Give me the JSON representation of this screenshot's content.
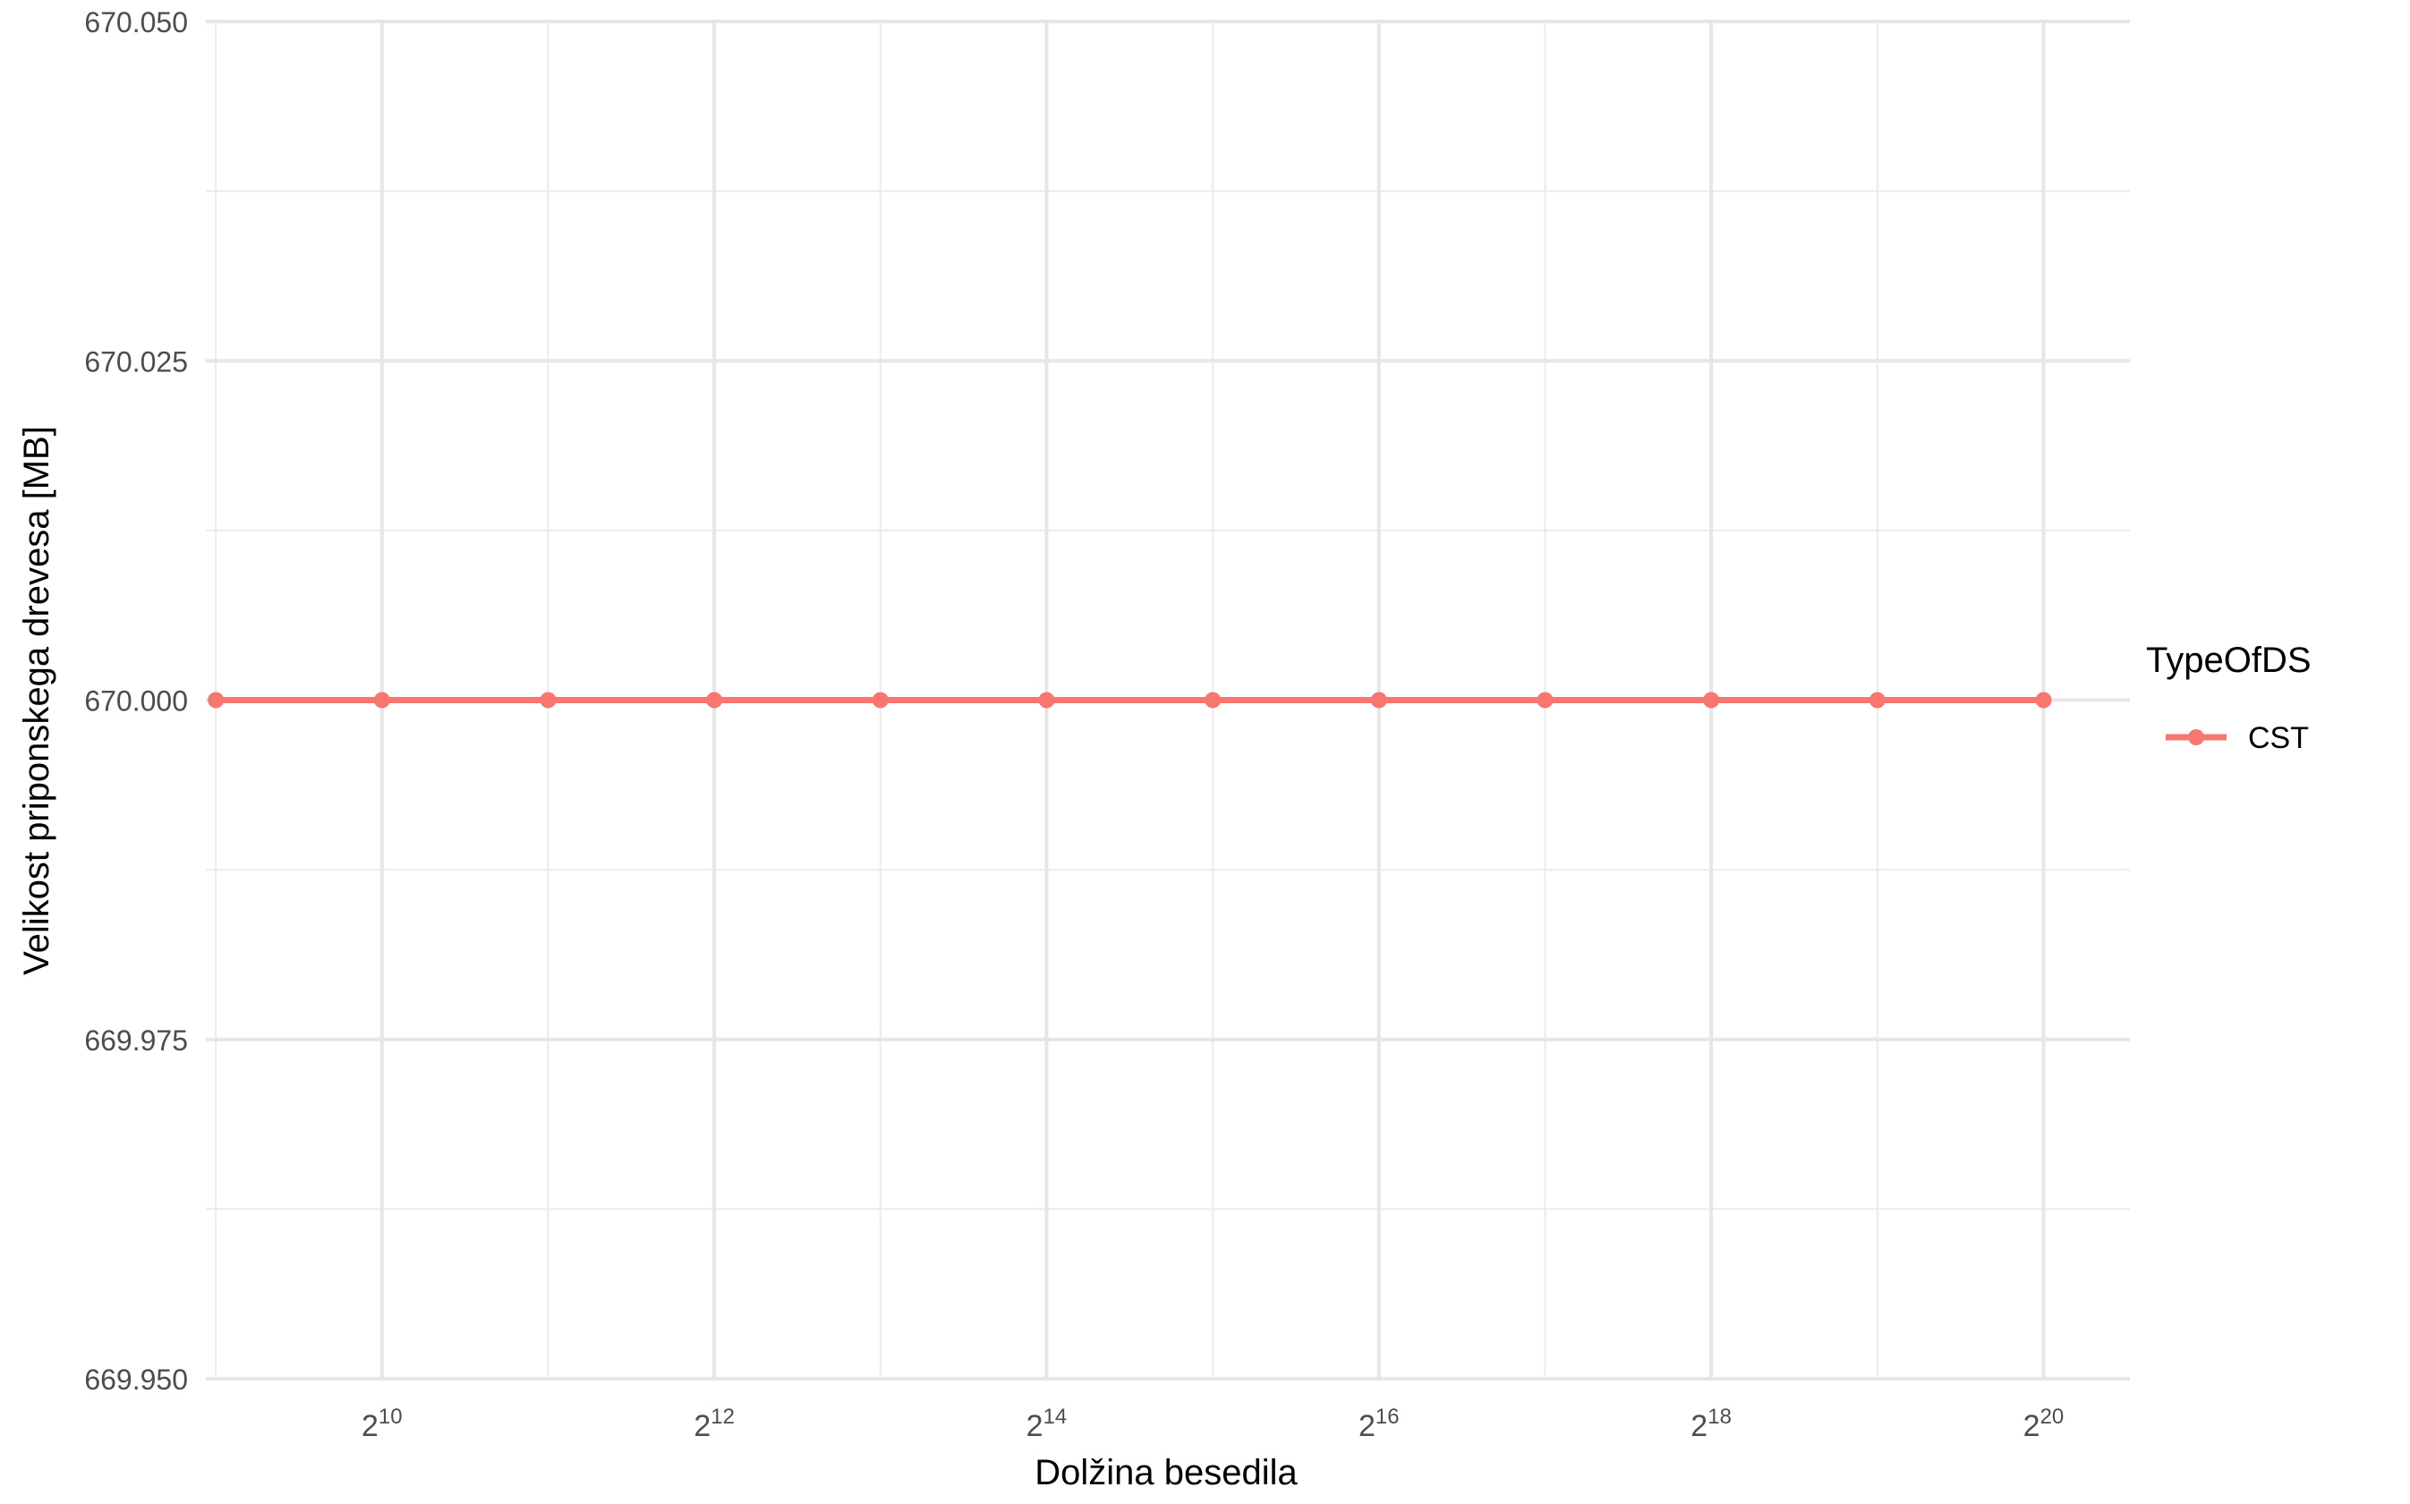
{
  "chart_data": {
    "type": "line",
    "title": "",
    "xlabel": "Dolžina besedila",
    "ylabel": "Velikost priponskega drevesa [MB]",
    "x_scale": "log2",
    "x": [
      512,
      1024,
      2048,
      4096,
      8192,
      16384,
      32768,
      65536,
      131072,
      262144,
      524288,
      1048576
    ],
    "x_ticks": [
      {
        "value": 1024,
        "base": "2",
        "exp": "10"
      },
      {
        "value": 4096,
        "base": "2",
        "exp": "12"
      },
      {
        "value": 16384,
        "base": "2",
        "exp": "14"
      },
      {
        "value": 65536,
        "base": "2",
        "exp": "16"
      },
      {
        "value": 262144,
        "base": "2",
        "exp": "18"
      },
      {
        "value": 1048576,
        "base": "2",
        "exp": "20"
      }
    ],
    "ylim": [
      669.95,
      670.05
    ],
    "y_ticks": [
      {
        "value": 669.95,
        "label": "669.950"
      },
      {
        "value": 669.975,
        "label": "669.975"
      },
      {
        "value": 670.0,
        "label": "670.000"
      },
      {
        "value": 670.025,
        "label": "670.025"
      },
      {
        "value": 670.05,
        "label": "670.050"
      }
    ],
    "series": [
      {
        "name": "CST",
        "color": "#F8766D",
        "values": [
          670,
          670,
          670,
          670,
          670,
          670,
          670,
          670,
          670,
          670,
          670,
          670
        ]
      }
    ],
    "legend": {
      "title": "TypeOfDS",
      "position": "right"
    },
    "grid": true
  }
}
